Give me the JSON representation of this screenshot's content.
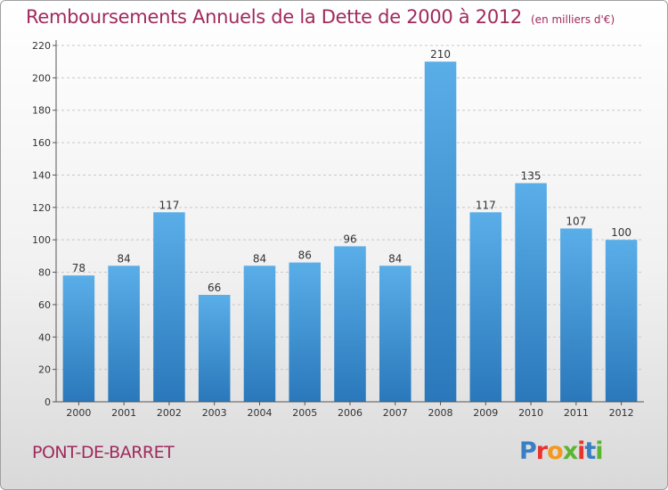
{
  "header": {
    "title": "Remboursements Annuels de la Dette de 2000 à 2012",
    "subtitle": "(en milliers d'€)"
  },
  "footer": {
    "place": "PONT-DE-BARRET",
    "logo": "Proxiti",
    "logo_colors": [
      "#3a7fc4",
      "#e8342d",
      "#f39a1e",
      "#5cb531",
      "#e8342d",
      "#3a7fc4",
      "#5cb531"
    ]
  },
  "colors": {
    "bar_top": "#5aaee8",
    "bar_bottom": "#2a78bb",
    "title": "#a02a5d"
  },
  "chart_data": {
    "type": "bar",
    "categories": [
      "2000",
      "2001",
      "2002",
      "2003",
      "2004",
      "2005",
      "2006",
      "2007",
      "2008",
      "2009",
      "2010",
      "2011",
      "2012"
    ],
    "values": [
      78,
      84,
      117,
      66,
      84,
      86,
      96,
      84,
      210,
      117,
      135,
      107,
      100
    ],
    "data_labels": [
      "78",
      "84",
      "117",
      "66",
      "84",
      "86",
      "96",
      "84",
      "210",
      "117",
      "135",
      "107",
      "100"
    ],
    "ylim": [
      0,
      220
    ],
    "yticks": [
      0,
      20,
      40,
      60,
      80,
      100,
      120,
      140,
      160,
      180,
      200,
      220
    ],
    "grid": true
  }
}
